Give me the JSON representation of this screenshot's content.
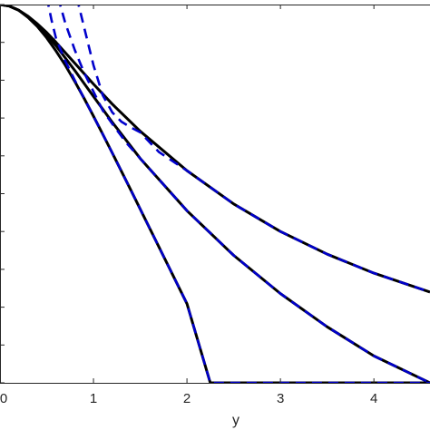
{
  "chart_data": {
    "type": "line",
    "title": "",
    "xlabel": "y",
    "ylabel": "",
    "xlim": [
      0,
      4.6
    ],
    "ylim": [
      0,
      1
    ],
    "x_ticks": [
      0,
      1,
      2,
      3,
      4
    ],
    "x_tick_labels": [
      "0",
      "1",
      "2",
      "3",
      "4"
    ],
    "grid": false,
    "colors": {
      "solid": "#000000",
      "dashed": "#0000cc",
      "axis": "#262626"
    },
    "series": [
      {
        "style": "solid",
        "x": [
          0,
          0.1,
          0.2,
          0.3,
          0.4,
          0.5,
          0.6,
          0.7,
          0.8,
          0.9,
          1.0,
          1.1,
          1.2,
          1.4,
          1.6,
          1.8,
          2.0,
          2.25,
          2.5,
          3.0,
          3.5,
          4.0,
          4.6
        ],
        "y": [
          1.0,
          0.996,
          0.985,
          0.966,
          0.942,
          0.912,
          0.877,
          0.839,
          0.797,
          0.752,
          0.705,
          0.657,
          0.608,
          0.509,
          0.409,
          0.309,
          0.209,
          0.0,
          0.0,
          0.0,
          0.0,
          0.0,
          0.0
        ]
      },
      {
        "style": "solid",
        "x": [
          0,
          0.1,
          0.2,
          0.3,
          0.4,
          0.5,
          0.6,
          0.8,
          1.0,
          1.2,
          1.5,
          2.0,
          2.5,
          3.0,
          3.5,
          4.0,
          4.6
        ],
        "y": [
          1.0,
          0.996,
          0.985,
          0.968,
          0.946,
          0.92,
          0.891,
          0.826,
          0.757,
          0.689,
          0.593,
          0.455,
          0.337,
          0.236,
          0.148,
          0.071,
          0.0
        ]
      },
      {
        "style": "solid",
        "x": [
          0,
          0.1,
          0.2,
          0.3,
          0.4,
          0.5,
          0.6,
          0.8,
          1.0,
          1.2,
          1.5,
          2.0,
          2.5,
          3.0,
          3.5,
          4.0,
          4.6
        ],
        "y": [
          1.0,
          0.996,
          0.985,
          0.969,
          0.949,
          0.926,
          0.9,
          0.845,
          0.79,
          0.737,
          0.665,
          0.561,
          0.473,
          0.4,
          0.34,
          0.29,
          0.24
        ]
      },
      {
        "style": "dashed",
        "x": [
          0.5,
          0.55,
          0.6,
          0.7,
          0.8,
          0.9,
          1.0,
          1.1,
          1.2,
          1.4,
          1.6,
          1.8,
          2.0,
          2.25,
          2.5,
          3.0,
          3.5,
          4.0,
          4.6
        ],
        "y": [
          1.02,
          0.96,
          0.91,
          0.85,
          0.8,
          0.752,
          0.705,
          0.657,
          0.608,
          0.509,
          0.409,
          0.309,
          0.209,
          0.0,
          0.0,
          0.0,
          0.0,
          0.0,
          0.0
        ]
      },
      {
        "style": "dashed",
        "x": [
          0.62,
          0.7,
          0.8,
          0.9,
          1.0,
          1.1,
          1.2,
          1.35,
          1.5,
          2.0,
          2.5,
          3.0,
          3.5,
          4.0,
          4.6
        ],
        "y": [
          1.02,
          0.95,
          0.88,
          0.82,
          0.77,
          0.72,
          0.685,
          0.635,
          0.593,
          0.455,
          0.337,
          0.236,
          0.148,
          0.071,
          0.0
        ]
      },
      {
        "style": "dashed",
        "x": [
          0.82,
          0.9,
          1.0,
          1.1,
          1.2,
          1.3,
          1.4,
          1.5,
          1.7,
          2.0,
          2.5,
          3.0,
          3.5,
          4.0,
          4.6
        ],
        "y": [
          1.02,
          0.94,
          0.84,
          0.76,
          0.715,
          0.69,
          0.675,
          0.662,
          0.61,
          0.561,
          0.473,
          0.4,
          0.34,
          0.29,
          0.24
        ]
      }
    ]
  }
}
